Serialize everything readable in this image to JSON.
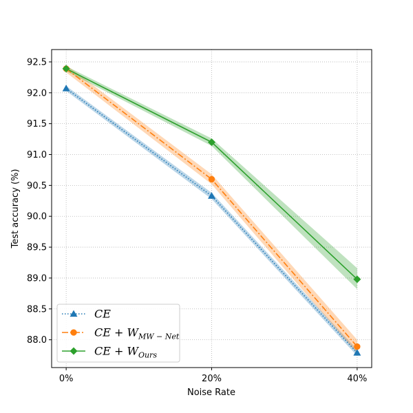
{
  "chart_data": {
    "type": "line",
    "xlabel": "Noise Rate",
    "ylabel": "Test accuracy (%)",
    "categories": [
      "0%",
      "20%",
      "40%"
    ],
    "x": [
      0,
      20,
      40
    ],
    "ylim": [
      87.55,
      92.7
    ],
    "yticks": [
      88.0,
      88.5,
      89.0,
      89.5,
      90.0,
      90.5,
      91.0,
      91.5,
      92.0,
      92.5
    ],
    "grid": true,
    "legend_position": "lower-left",
    "series": [
      {
        "name": "CE",
        "legend_main": "CE",
        "legend_sub": "",
        "color": "#1f77b4",
        "marker": "triangle",
        "linestyle": "dotted",
        "values": [
          92.07,
          90.33,
          87.79
        ],
        "band_low": [
          92.03,
          90.28,
          87.74
        ],
        "band_high": [
          92.11,
          90.38,
          87.84
        ]
      },
      {
        "name": "CE + W_{MW-Net}",
        "legend_main": "CE + W",
        "legend_sub": "MW − Net",
        "color": "#ff7f0e",
        "marker": "circle",
        "linestyle": "dashdot",
        "values": [
          92.39,
          90.6,
          87.89
        ],
        "band_low": [
          92.33,
          90.52,
          87.78
        ],
        "band_high": [
          92.45,
          90.68,
          88.0
        ]
      },
      {
        "name": "CE + W_{Ours}",
        "legend_main": "CE + W",
        "legend_sub": "Ours",
        "color": "#2ca02c",
        "marker": "diamond",
        "linestyle": "solid",
        "values": [
          92.39,
          91.2,
          88.98
        ],
        "band_low": [
          92.35,
          91.14,
          88.82
        ],
        "band_high": [
          92.43,
          91.26,
          89.16
        ]
      }
    ]
  }
}
